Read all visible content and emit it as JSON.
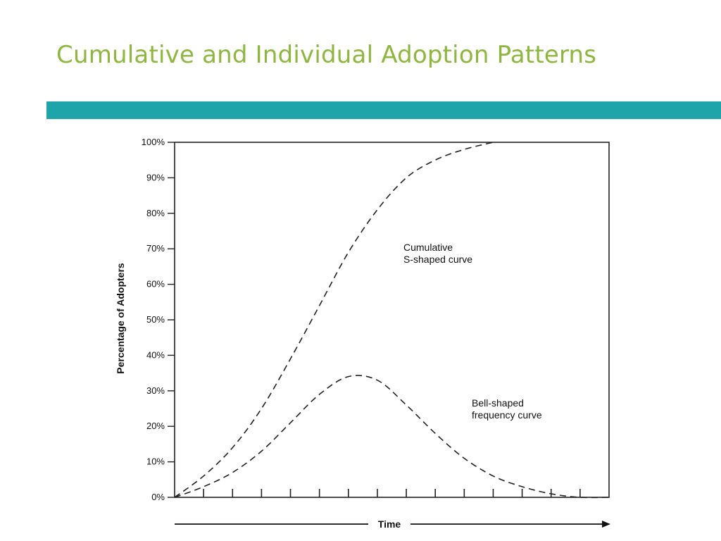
{
  "slide": {
    "title": "Cumulative and Individual Adoption Patterns",
    "title_color": "#8DB73F",
    "accent_bar_color": "#1FA4AA"
  },
  "chart_data": {
    "type": "line",
    "title": "",
    "xlabel": "Time",
    "ylabel": "Percentage of Adopters",
    "ylim": [
      0,
      100
    ],
    "x_tick_count": 15,
    "x_tick_labels": [],
    "y_ticks": [
      0,
      10,
      20,
      30,
      40,
      50,
      60,
      70,
      80,
      90,
      100
    ],
    "y_tick_labels": [
      "0%",
      "10%",
      "20%",
      "30%",
      "40%",
      "50%",
      "60%",
      "70%",
      "80%",
      "90%",
      "100%"
    ],
    "line_style": "dashed",
    "line_color": "#222222",
    "grid": false,
    "x": [
      0,
      1,
      2,
      3,
      4,
      5,
      6,
      7,
      8,
      9,
      10,
      11,
      12,
      13,
      14,
      15
    ],
    "series": [
      {
        "name": "Cumulative S-shaped curve",
        "label_lines": [
          "Cumulative",
          "S-shaped curve"
        ],
        "values": [
          0,
          6,
          14,
          25,
          39,
          54,
          69,
          81,
          90,
          95,
          98,
          100,
          100,
          100,
          100,
          100
        ]
      },
      {
        "name": "Bell-shaped frequency curve",
        "label_lines": [
          "Bell-shaped",
          "frequency curve"
        ],
        "values": [
          0,
          3,
          7,
          13,
          21,
          29,
          34,
          33,
          26,
          18,
          11,
          6,
          3,
          1,
          0,
          0
        ]
      }
    ]
  }
}
